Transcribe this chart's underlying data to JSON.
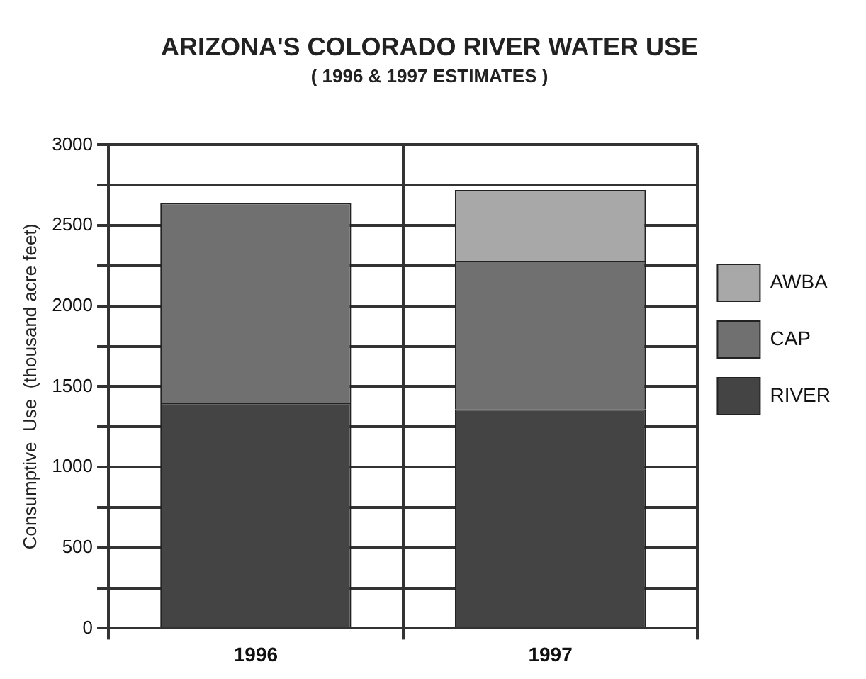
{
  "chart_data": {
    "type": "bar",
    "title": "ARIZONA'S COLORADO RIVER WATER USE",
    "subtitle": "( 1996 & 1997 ESTIMATES )",
    "ylabel": "Consumptive  Use  (thousand acre feet)",
    "categories": [
      "1996",
      "1997"
    ],
    "stacked": true,
    "series": [
      {
        "name": "RIVER",
        "color": "#444444",
        "values": [
          1400,
          1360
        ]
      },
      {
        "name": "CAP",
        "color": "#707070",
        "values": [
          1240,
          920
        ]
      },
      {
        "name": "AWBA",
        "color": "#a8a8a8",
        "values": [
          0,
          440
        ]
      }
    ],
    "ylim": [
      0,
      3000
    ],
    "yticks": [
      0,
      {
        "value": 250,
        "label": null
      },
      500,
      {
        "value": 750,
        "label": null
      },
      1000,
      {
        "value": 1250,
        "label": null
      },
      1500,
      {
        "value": 1750,
        "label": null
      },
      2000,
      {
        "value": 2250,
        "label": null
      },
      2500,
      {
        "value": 2750,
        "label": null
      },
      3000
    ],
    "grid": true,
    "legend": "right"
  }
}
